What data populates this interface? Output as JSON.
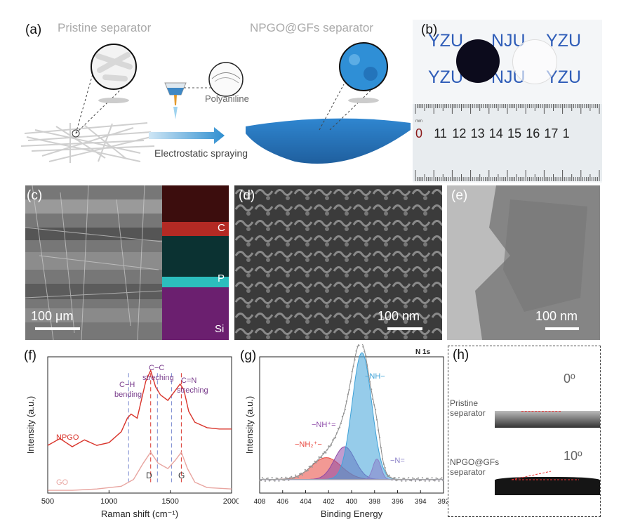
{
  "panel_a": {
    "label": "(a)",
    "title_left": "Pristine separator",
    "title_right": "NPGO@GFs separator",
    "polyaniline": "Polyaniline",
    "process": "Electrostatic spraying"
  },
  "panel_b": {
    "label": "(b)",
    "row1": [
      "YZU",
      "NJU",
      "YZU"
    ],
    "row2": [
      "YZU",
      "NJU",
      "YZU"
    ],
    "ruler_unit": "mm",
    "ruler_numbers": [
      "0",
      "11",
      "12",
      "13",
      "14",
      "15",
      "16",
      "17",
      "1"
    ]
  },
  "panel_c": {
    "label": "(c)",
    "scale": "100 μm",
    "maps": [
      "C",
      "P",
      "Si"
    ],
    "map_colors": [
      "#e0302a",
      "#2ec6c6",
      "#c040c8"
    ]
  },
  "panel_d": {
    "label": "(d)",
    "scale": "100 nm"
  },
  "panel_e": {
    "label": "(e)",
    "scale": "100 nm"
  },
  "panel_f": {
    "label": "(f)",
    "ann_ch": [
      "C−H",
      "bending"
    ],
    "ann_cc": [
      "C−C",
      "streching"
    ],
    "ann_cn": [
      "C=N",
      "streching"
    ],
    "peak_d": "D",
    "peak_g": "G"
  },
  "panel_g": {
    "label": "(g)",
    "corner": "N 1s",
    "peak_nh": "−NH−",
    "peak_nhplus": "−NH⁺=",
    "peak_nh2": "−NH₂⁺−",
    "peak_n": "−N="
  },
  "panel_h": {
    "label": "(h)",
    "angle_top": "0º",
    "angle_bottom": "10º",
    "top_label": [
      "Pristine",
      "separator"
    ],
    "bottom_label": [
      "NPGO@GFs",
      "separator"
    ]
  },
  "chart_data": [
    {
      "type": "line",
      "xlabel": "Raman shift (cm⁻¹)",
      "ylabel": "Intensity (a.u.)",
      "xlim": [
        500,
        2000
      ],
      "xticks": [
        500,
        1000,
        1500,
        2000
      ],
      "series": [
        {
          "name": "NPGO",
          "color": "#d9342b",
          "x": [
            500,
            600,
            700,
            800,
            900,
            1000,
            1100,
            1150,
            1180,
            1230,
            1300,
            1340,
            1380,
            1420,
            1480,
            1530,
            1580,
            1610,
            1650,
            1700,
            1800,
            1900,
            2000
          ],
          "y": [
            0.35,
            0.4,
            0.34,
            0.39,
            0.35,
            0.37,
            0.45,
            0.55,
            0.58,
            0.55,
            0.82,
            0.9,
            0.78,
            0.72,
            0.68,
            0.74,
            0.8,
            0.76,
            0.6,
            0.52,
            0.48,
            0.47,
            0.47
          ]
        },
        {
          "name": "GO",
          "color": "#e8a5a0",
          "x": [
            500,
            700,
            900,
            1100,
            1200,
            1280,
            1340,
            1400,
            1480,
            1540,
            1590,
            1640,
            1700,
            1800,
            2000
          ],
          "y": [
            0.02,
            0.02,
            0.03,
            0.05,
            0.1,
            0.22,
            0.3,
            0.22,
            0.18,
            0.24,
            0.3,
            0.18,
            0.08,
            0.04,
            0.03
          ]
        }
      ],
      "markers_x": [
        1160,
        1340,
        1395,
        1510,
        1590
      ]
    },
    {
      "type": "line",
      "xlabel": "Binding Energy",
      "ylabel": "Intensity (a.u.)",
      "xlim": [
        408,
        392
      ],
      "xticks": [
        408,
        406,
        404,
        402,
        400,
        398,
        396,
        394,
        392
      ],
      "series": [
        {
          "name": "−NH₂⁺−",
          "color": "#e8453c",
          "center": 402.2,
          "height": 0.16,
          "width": 1.3
        },
        {
          "name": "−NH⁺=",
          "color": "#8e4aa8",
          "center": 400.6,
          "height": 0.24,
          "width": 0.9
        },
        {
          "name": "−NH−",
          "color": "#3fa2d8",
          "center": 399.1,
          "height": 0.93,
          "width": 0.85
        },
        {
          "name": "−N=",
          "color": "#8a80c8",
          "center": 397.8,
          "height": 0.15,
          "width": 0.35
        }
      ]
    }
  ]
}
